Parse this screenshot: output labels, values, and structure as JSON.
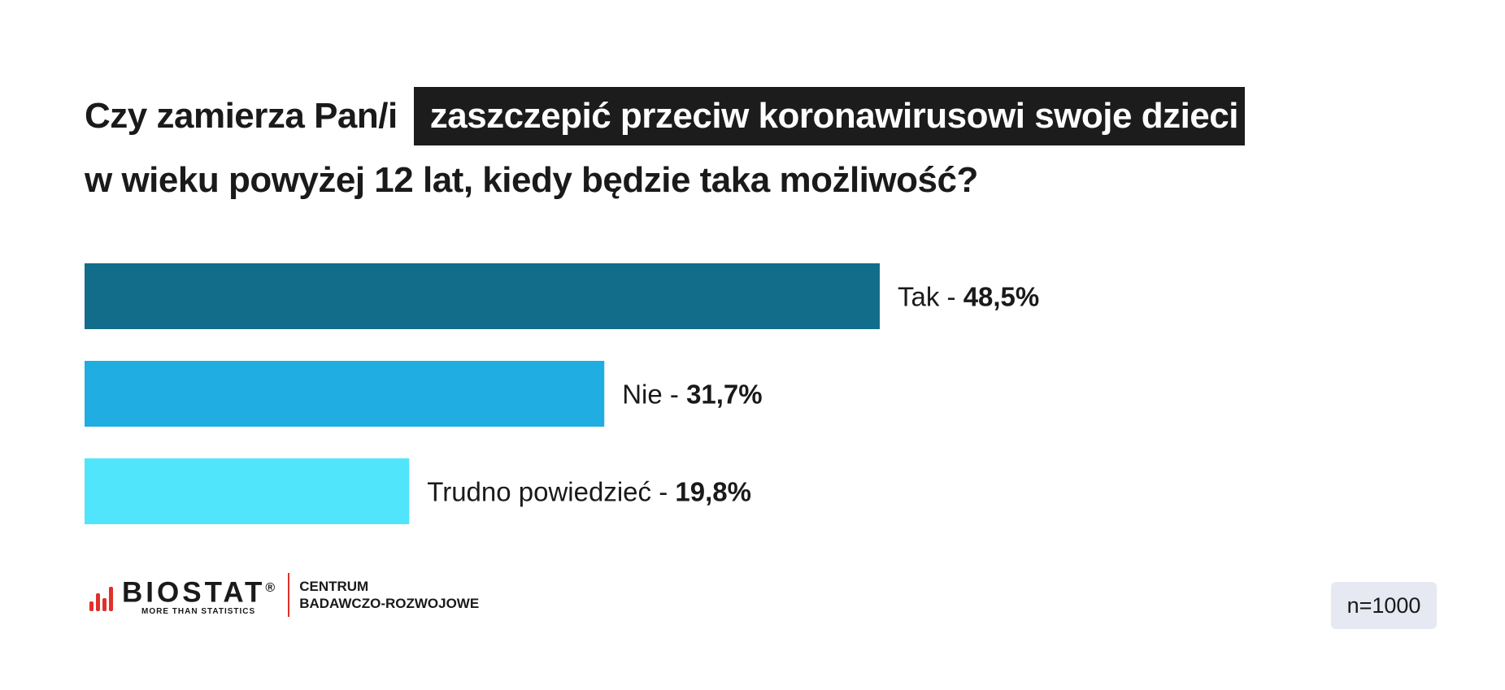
{
  "title": {
    "part1": "Czy zamierza Pan/i",
    "highlight": "zaszczepić przeciw koronawirusowi swoje dzieci",
    "line2": "w wieku powyżej 12 lat, kiedy będzie taka możliwość?"
  },
  "chart_data": {
    "type": "bar",
    "orientation": "horizontal",
    "title": "Czy zamierza Pan/i zaszczepić przeciw koronawirusowi swoje dzieci w wieku powyżej 12 lat, kiedy będzie taka możliwość?",
    "categories": [
      "Tak",
      "Nie",
      "Trudno powiedzieć"
    ],
    "values": [
      48.5,
      31.7,
      19.8
    ],
    "value_labels": [
      "48,5%",
      "31,7%",
      "19,8%"
    ],
    "colors": [
      "#126d8a",
      "#20ade2",
      "#50e5fb"
    ],
    "xlim": [
      0,
      100
    ],
    "grid": false,
    "legend": "none"
  },
  "footer": {
    "logo_name": "BIOSTAT",
    "logo_reg": "®",
    "logo_tagline": "MORE THAN STATISTICS",
    "center_line1": "CENTRUM",
    "center_line2": "BADAWCZO-ROZWOJOWE",
    "logo_color": "#e0302a"
  },
  "sample": "n=1000"
}
